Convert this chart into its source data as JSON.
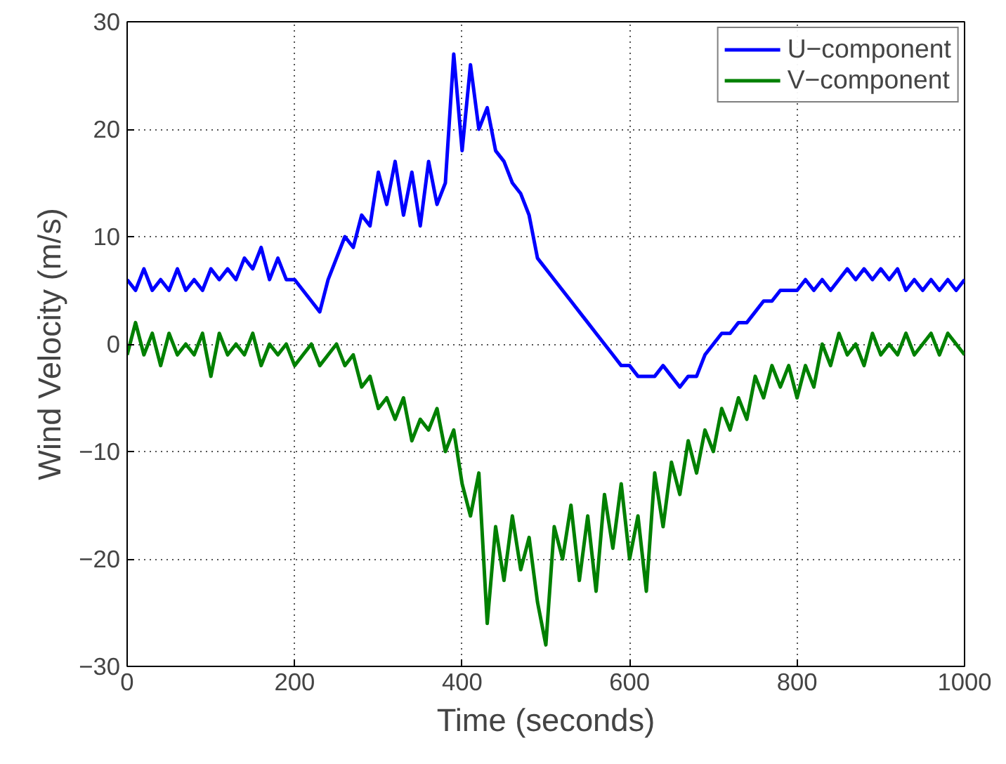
{
  "chart_data": {
    "type": "line",
    "xlabel": "Time (seconds)",
    "ylabel": "Wind Velocity (m/s)",
    "x": [
      0,
      10,
      20,
      30,
      40,
      50,
      60,
      70,
      80,
      90,
      100,
      110,
      120,
      130,
      140,
      150,
      160,
      170,
      180,
      190,
      200,
      210,
      220,
      230,
      240,
      250,
      260,
      270,
      280,
      290,
      300,
      310,
      320,
      330,
      340,
      350,
      360,
      370,
      380,
      390,
      400,
      410,
      420,
      430,
      440,
      450,
      460,
      470,
      480,
      490,
      500,
      510,
      520,
      530,
      540,
      550,
      560,
      570,
      580,
      590,
      600,
      610,
      620,
      630,
      640,
      650,
      660,
      670,
      680,
      690,
      700,
      710,
      720,
      730,
      740,
      750,
      760,
      770,
      780,
      790,
      800,
      810,
      820,
      830,
      840,
      850,
      860,
      870,
      880,
      890,
      900,
      910,
      920,
      930,
      940,
      950,
      960,
      970,
      980,
      990,
      1000
    ],
    "series": [
      {
        "name": "U−component",
        "color": "#0000ff",
        "values": [
          6,
          5,
          7,
          5,
          6,
          5,
          7,
          5,
          6,
          5,
          7,
          6,
          7,
          6,
          8,
          7,
          9,
          6,
          8,
          6,
          6,
          5,
          4,
          3,
          6,
          8,
          10,
          9,
          12,
          11,
          16,
          13,
          17,
          12,
          16,
          11,
          17,
          13,
          15,
          27,
          18,
          26,
          20,
          22,
          18,
          17,
          15,
          14,
          12,
          8,
          7,
          6,
          5,
          4,
          3,
          2,
          1,
          0,
          -1,
          -2,
          -2,
          -3,
          -3,
          -3,
          -2,
          -3,
          -4,
          -3,
          -3,
          -1,
          0,
          1,
          1,
          2,
          2,
          3,
          4,
          4,
          5,
          5,
          5,
          6,
          5,
          6,
          5,
          6,
          7,
          6,
          7,
          6,
          7,
          6,
          7,
          5,
          6,
          5,
          6,
          5,
          6,
          5,
          6
        ]
      },
      {
        "name": "V−component",
        "color": "#008000",
        "values": [
          -1,
          2,
          -1,
          1,
          -2,
          1,
          -1,
          0,
          -1,
          1,
          -3,
          1,
          -1,
          0,
          -1,
          1,
          -2,
          0,
          -1,
          0,
          -2,
          -1,
          0,
          -2,
          -1,
          0,
          -2,
          -1,
          -4,
          -3,
          -6,
          -5,
          -7,
          -5,
          -9,
          -7,
          -8,
          -6,
          -10,
          -8,
          -13,
          -16,
          -12,
          -26,
          -17,
          -22,
          -16,
          -21,
          -18,
          -24,
          -28,
          -17,
          -20,
          -15,
          -22,
          -16,
          -23,
          -14,
          -19,
          -13,
          -20,
          -16,
          -23,
          -12,
          -17,
          -11,
          -14,
          -9,
          -12,
          -8,
          -10,
          -6,
          -8,
          -5,
          -7,
          -3,
          -5,
          -2,
          -4,
          -2,
          -5,
          -2,
          -4,
          0,
          -2,
          1,
          -1,
          0,
          -2,
          1,
          -1,
          0,
          -1,
          1,
          -1,
          0,
          1,
          -1,
          1,
          0,
          -1
        ]
      }
    ],
    "xlim": [
      0,
      1000
    ],
    "xticks": [
      0,
      200,
      400,
      600,
      800,
      1000
    ],
    "ylim": [
      -30,
      30
    ],
    "yticks": [
      -30,
      -20,
      -10,
      0,
      10,
      20,
      30
    ],
    "grid": true,
    "legend": "top right",
    "line_style": "solid",
    "marker": "none"
  }
}
